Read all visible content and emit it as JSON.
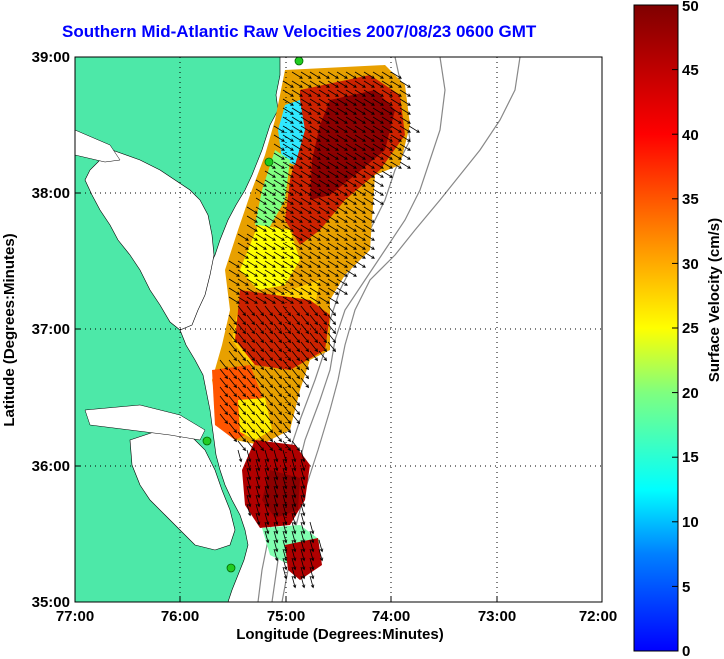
{
  "title": "Southern Mid-Atlantic Raw Velocities 2007/08/23 0600 GMT",
  "axes": {
    "xlabel": "Longitude (Degrees:Minutes)",
    "ylabel": "Latitude (Degrees:Minutes)",
    "x_ticks": [
      "77:00",
      "76:00",
      "75:00",
      "74:00",
      "73:00",
      "72:00"
    ],
    "y_ticks": [
      "39:00",
      "38:00",
      "37:00",
      "36:00",
      "35:00"
    ],
    "x_range_deg_west": [
      77,
      72
    ],
    "y_range_deg_north": [
      35,
      39
    ],
    "grid": true
  },
  "colorbar": {
    "label": "Surface Velocity (cm/s)",
    "ticks": [
      "50",
      "45",
      "40",
      "35",
      "30",
      "25",
      "20",
      "15",
      "10",
      "5",
      "0"
    ],
    "range_cm_s": [
      0,
      50
    ],
    "colormap": "jet"
  },
  "colors": {
    "land": "#4de8a8",
    "title": "#0000ff",
    "station": "#22cc22",
    "bathymetry": "#888888"
  },
  "icons": {
    "station": "station-marker-icon",
    "vector": "velocity-arrow-icon"
  }
}
